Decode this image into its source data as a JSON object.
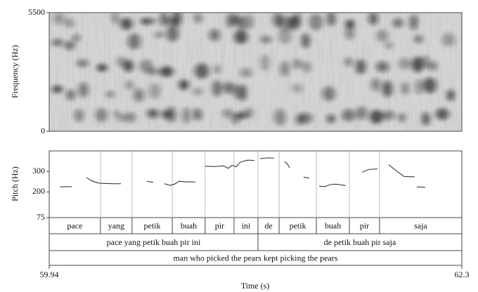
{
  "chart_data": [
    {
      "type": "spectrogram",
      "ylabel": "Frequency (Hz)",
      "ylim": [
        0,
        5500
      ],
      "yticks": [
        0,
        5500
      ]
    },
    {
      "type": "line",
      "ylabel": "Pitch (Hz)",
      "xlabel": "Time (s)",
      "xlim": [
        59.94,
        62.3
      ],
      "xticks": [
        59.94,
        62.3
      ],
      "ylim": [
        75,
        400
      ],
      "yticks": [
        75,
        200,
        300
      ],
      "series": [
        {
          "color": "#222222",
          "x": [
            60.0,
            60.069,
            null,
            60.153,
            60.181,
            60.221,
            60.302,
            60.35,
            null,
            60.499,
            60.535,
            null,
            60.599,
            60.631,
            60.656,
            60.684,
            60.724,
            60.776,
            null,
            60.832,
            60.885,
            60.937,
            60.965,
            60.985,
            61.009,
            61.033,
            61.074,
            61.114,
            null,
            61.146,
            61.186,
            61.226,
            null,
            61.287,
            61.303,
            61.315,
            null,
            61.395,
            61.427,
            null,
            61.484,
            61.516,
            61.548,
            61.58,
            61.636,
            null,
            61.729,
            61.769,
            61.817,
            null,
            61.881,
            61.93,
            61.97,
            62.03,
            null,
            62.042,
            62.09
          ],
          "values": [
            225,
            226,
            null,
            270,
            255,
            243,
            240,
            240,
            null,
            252,
            247,
            null,
            240,
            232,
            238,
            252,
            249,
            249,
            null,
            325,
            324,
            327,
            315,
            330,
            322,
            345,
            355,
            354,
            null,
            362,
            366,
            365,
            null,
            348,
            335,
            318,
            null,
            272,
            268,
            null,
            228,
            226,
            236,
            238,
            231,
            null,
            296,
            310,
            312,
            null,
            333,
            300,
            275,
            274,
            null,
            225,
            222
          ]
        }
      ],
      "tiers": [
        {
          "intervals": [
            {
              "start": 59.94,
              "end": 60.233,
              "label": "pace"
            },
            {
              "start": 60.233,
              "end": 60.414,
              "label": "yang"
            },
            {
              "start": 60.414,
              "end": 60.644,
              "label": "petik"
            },
            {
              "start": 60.644,
              "end": 60.832,
              "label": "buah"
            },
            {
              "start": 60.832,
              "end": 60.997,
              "label": "pir"
            },
            {
              "start": 60.997,
              "end": 61.134,
              "label": "ini"
            },
            {
              "start": 61.134,
              "end": 61.255,
              "label": "de"
            },
            {
              "start": 61.255,
              "end": 61.468,
              "label": "petik"
            },
            {
              "start": 61.468,
              "end": 61.657,
              "label": "buah"
            },
            {
              "start": 61.657,
              "end": 61.829,
              "label": "pir"
            },
            {
              "start": 61.829,
              "end": 62.3,
              "label": "saja"
            }
          ]
        },
        {
          "intervals": [
            {
              "start": 59.94,
              "end": 61.134,
              "label": "pace yang petik buah pir ini"
            },
            {
              "start": 61.134,
              "end": 62.3,
              "label": "de petik buah pir saja"
            }
          ]
        },
        {
          "intervals": [
            {
              "start": 59.94,
              "end": 62.3,
              "label": "man who picked the pears kept picking the pears"
            }
          ]
        }
      ]
    }
  ]
}
